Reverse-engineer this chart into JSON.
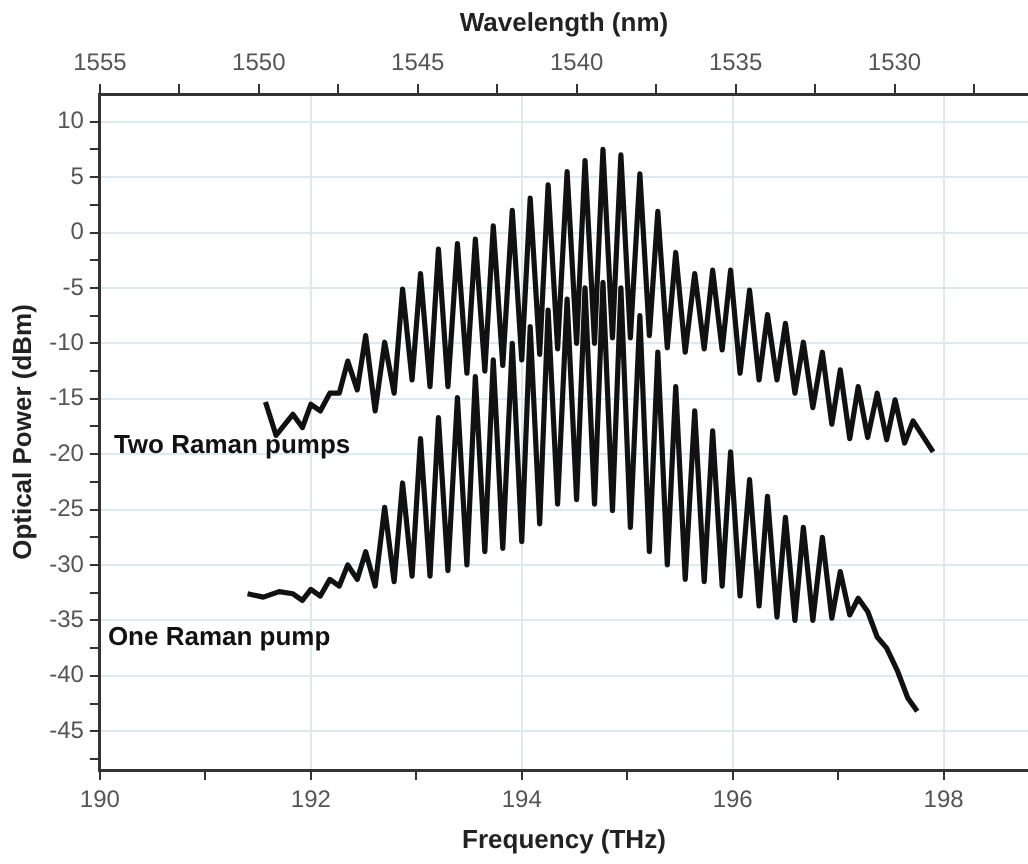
{
  "chart_data": {
    "type": "line",
    "xlabel": "Frequency (THz)",
    "ylabel": "Optical Power (dBm)",
    "x2label": "Wavelength (nm)",
    "xlim": [
      190,
      198.8
    ],
    "xticks": [
      190,
      {
        "value": 191,
        "label": null
      },
      192,
      {
        "value": 193,
        "label": null
      },
      194,
      {
        "value": 195,
        "label": null
      },
      196,
      {
        "value": 197,
        "label": null
      },
      198
    ],
    "ylim": [
      -48.5,
      12.5
    ],
    "yticks": [
      {
        "value": -47.5,
        "label": null
      },
      -45,
      {
        "value": -42.5,
        "label": null
      },
      -40,
      {
        "value": -37.5,
        "label": null
      },
      -35,
      {
        "value": -32.5,
        "label": null
      },
      -30,
      {
        "value": -27.5,
        "label": null
      },
      -25,
      {
        "value": -22.5,
        "label": null
      },
      -20,
      {
        "value": -17.5,
        "label": null
      },
      -15,
      {
        "value": -12.5,
        "label": null
      },
      -10,
      {
        "value": -7.5,
        "label": null
      },
      -5,
      {
        "value": -2.5,
        "label": null
      },
      0,
      {
        "value": 2.5,
        "label": null
      },
      5,
      {
        "value": 7.5,
        "label": null
      },
      10
    ],
    "x2lim": [
      1555,
      1525.8
    ],
    "x2ticks": [
      1555,
      {
        "value": 1552.5,
        "label": null
      },
      1550,
      {
        "value": 1547.5,
        "label": null
      },
      1545,
      {
        "value": 1542.5,
        "label": null
      },
      1540,
      {
        "value": 1537.5,
        "label": null
      },
      1535,
      {
        "value": 1532.5,
        "label": null
      },
      1530,
      {
        "value": 1527.5,
        "label": null
      }
    ],
    "grid": true,
    "marker": "none",
    "line_style": "solid",
    "series": [
      {
        "name": "Two Raman pumps",
        "color": "#111111",
        "x": [
          191.57,
          191.67,
          191.83,
          191.92,
          192.0,
          192.09,
          192.18,
          192.27,
          192.35,
          192.44,
          192.52,
          192.61,
          192.7,
          192.79,
          192.87,
          192.96,
          193.04,
          193.13,
          193.21,
          193.3,
          193.39,
          193.48,
          193.56,
          193.65,
          193.73,
          193.82,
          193.91,
          194.0,
          194.08,
          194.17,
          194.25,
          194.34,
          194.43,
          194.52,
          194.6,
          194.69,
          194.77,
          194.86,
          194.94,
          195.03,
          195.12,
          195.21,
          195.29,
          195.38,
          195.46,
          195.55,
          195.64,
          195.73,
          195.81,
          195.9,
          195.98,
          196.07,
          196.16,
          196.25,
          196.33,
          196.42,
          196.5,
          196.59,
          196.67,
          196.76,
          196.85,
          196.94,
          197.02,
          197.11,
          197.19,
          197.28,
          197.37,
          197.46,
          197.54,
          197.63,
          197.71,
          197.9
        ],
        "values": [
          -15.3,
          -18.3,
          -16.4,
          -17.6,
          -15.5,
          -16.1,
          -14.5,
          -14.5,
          -11.6,
          -14.2,
          -9.3,
          -16.1,
          -9.9,
          -14.5,
          -5.1,
          -13.3,
          -3.7,
          -13.9,
          -1.5,
          -13.9,
          -1.0,
          -12.7,
          -0.6,
          -12.5,
          0.6,
          -12,
          2.0,
          -11.5,
          3.1,
          -11,
          4.3,
          -10.5,
          5.5,
          -10,
          6.5,
          -10,
          7.5,
          -9.5,
          7.0,
          -9.5,
          5.3,
          -9.3,
          1.9,
          -10.4,
          -1.8,
          -10.8,
          -3.7,
          -10.5,
          -3.4,
          -10.6,
          -3.4,
          -12.7,
          -5.2,
          -13.3,
          -7.4,
          -13.3,
          -8.2,
          -14.5,
          -9.9,
          -15.8,
          -10.8,
          -17.3,
          -12.4,
          -18.6,
          -13.9,
          -18.5,
          -14.5,
          -18.7,
          -15.1,
          -19.0,
          -17.0,
          -19.8
        ]
      },
      {
        "name": "One Raman pump",
        "color": "#111111",
        "x": [
          191.4,
          191.55,
          191.7,
          191.83,
          191.92,
          192.0,
          192.09,
          192.18,
          192.27,
          192.35,
          192.44,
          192.52,
          192.61,
          192.7,
          192.79,
          192.87,
          192.96,
          193.04,
          193.13,
          193.21,
          193.3,
          193.39,
          193.48,
          193.56,
          193.65,
          193.73,
          193.82,
          193.91,
          194.0,
          194.08,
          194.17,
          194.25,
          194.34,
          194.43,
          194.52,
          194.6,
          194.69,
          194.77,
          194.86,
          194.94,
          195.03,
          195.12,
          195.21,
          195.29,
          195.38,
          195.46,
          195.55,
          195.64,
          195.73,
          195.81,
          195.9,
          195.98,
          196.07,
          196.16,
          196.25,
          196.33,
          196.42,
          196.5,
          196.59,
          196.67,
          196.76,
          196.85,
          196.94,
          197.02,
          197.11,
          197.19,
          197.28,
          197.37,
          197.46,
          197.56,
          197.66,
          197.75
        ],
        "values": [
          -32.6,
          -32.9,
          -32.4,
          -32.6,
          -33.2,
          -32.2,
          -32.8,
          -31.3,
          -31.9,
          -30.0,
          -31.3,
          -28.8,
          -31.9,
          -24.8,
          -31.5,
          -22.6,
          -31.0,
          -18.6,
          -31.0,
          -16.7,
          -30.5,
          -14.9,
          -30.0,
          -13.0,
          -28.8,
          -11.5,
          -28.5,
          -10,
          -27.9,
          -8.5,
          -26.3,
          -7,
          -24.5,
          -6,
          -24.1,
          -5,
          -24.5,
          -4.5,
          -25.1,
          -5,
          -26.6,
          -7.5,
          -28.8,
          -10.8,
          -30.0,
          -13.9,
          -31.3,
          -16.1,
          -31.5,
          -17.9,
          -31.9,
          -19.8,
          -32.8,
          -22.3,
          -33.7,
          -23.8,
          -34.7,
          -25.7,
          -35.0,
          -26.6,
          -35.0,
          -27.5,
          -34.8,
          -30.6,
          -34.5,
          -33.0,
          -34.2,
          -36.5,
          -37.5,
          -39.5,
          -42,
          -43.2
        ]
      }
    ]
  }
}
